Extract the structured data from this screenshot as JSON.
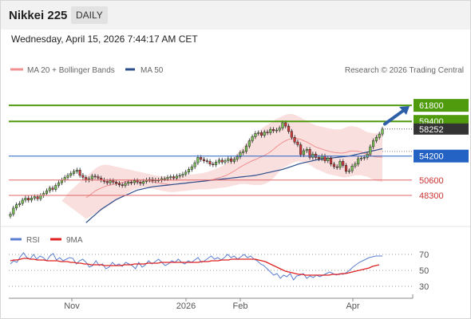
{
  "header": {
    "title": "Nikkei 225",
    "period": "DAILY"
  },
  "timestamp": "Wednesday, April 15, 2026 7:44:17 AM CET",
  "copyright": "Research © 2026 Trading Central",
  "legend": {
    "bollinger": "MA 20 + Bollinger Bands",
    "ma50": "MA 50",
    "rsi": "RSI",
    "ma9": "9MA"
  },
  "colors": {
    "resistance": "#4f9a0d",
    "pivot": "#2462c4",
    "support": "#e06666",
    "bollinger": "#f5b8b8",
    "ma50": "#2b4d8c",
    "rsi": "#5b7fd0",
    "ma9": "#e02020",
    "arrow": "#2c5fa8",
    "price_badge": "#333333"
  },
  "chart_data": [
    {
      "type": "candlestick",
      "name": "price",
      "ylim": [
        44000,
        66000
      ],
      "x_labels": [
        "Nov",
        "2026",
        "Feb",
        "Apr"
      ],
      "last_price": "58252",
      "levels": [
        {
          "value": 61800,
          "label": "61800",
          "kind": "resistance"
        },
        {
          "value": 59400,
          "label": "59400",
          "kind": "resistance"
        },
        {
          "value": 54200,
          "label": "54200",
          "kind": "pivot"
        },
        {
          "value": 50600,
          "label": "50600",
          "kind": "support"
        },
        {
          "value": 48300,
          "label": "48300",
          "kind": "support"
        }
      ],
      "close": [
        45500,
        46400,
        46900,
        47100,
        47600,
        47900,
        47600,
        47900,
        48100,
        47800,
        48300,
        48600,
        49000,
        49400,
        49200,
        49800,
        50200,
        50600,
        51000,
        51300,
        51600,
        51900,
        52100,
        51300,
        51000,
        50600,
        50800,
        51200,
        51100,
        50900,
        50600,
        50400,
        50200,
        50500,
        50300,
        50100,
        49900,
        49800,
        50100,
        50300,
        50200,
        50500,
        50300,
        50100,
        50400,
        50600,
        50700,
        50500,
        50600,
        50600,
        50800,
        50800,
        51000,
        51100,
        50900,
        51200,
        51300,
        51500,
        51800,
        52200,
        52600,
        53200,
        54000,
        53700,
        53500,
        53400,
        53000,
        52900,
        53300,
        53600,
        53300,
        53500,
        53800,
        53400,
        53700,
        54100,
        54700,
        54900,
        55700,
        56500,
        57100,
        57600,
        57700,
        57300,
        57800,
        57700,
        58200,
        58000,
        58100,
        58400,
        59200,
        58700,
        57900,
        57000,
        56300,
        55900,
        54400,
        55000,
        55200,
        54000,
        54500,
        54000,
        53800,
        54200,
        53500,
        53900,
        53000,
        52600,
        52500,
        53400,
        52800,
        51900,
        52000,
        52700,
        53000,
        53800,
        53900,
        54000,
        54500,
        55600,
        56500,
        57000,
        57500,
        58252
      ],
      "ma20_upper": [
        47500,
        48000,
        48600,
        49100,
        49500,
        49900,
        50300,
        50700,
        51100,
        51500,
        51900,
        52300,
        52600,
        52800,
        52900,
        52900,
        52800,
        52700,
        52600,
        52500,
        52400,
        52300,
        52200,
        52100,
        52000,
        51900,
        51800,
        51700,
        51600,
        51500,
        51400,
        51300,
        51250,
        51200,
        51150,
        51100,
        51100,
        51100,
        51150,
        51200,
        51250,
        51300,
        51400,
        51450,
        51500,
        51550,
        51600,
        51700,
        51800,
        51950,
        52100,
        52300,
        52500,
        52700,
        53000,
        53300,
        53700,
        54100,
        54600,
        55100,
        55600,
        56100,
        56600,
        57100,
        57500,
        57900,
        58300,
        58600,
        58900,
        59200,
        59500,
        59800,
        60000,
        60200,
        60400,
        60500,
        60500,
        60400,
        60200,
        60000,
        59700,
        59500,
        59200,
        59000,
        58800,
        58700,
        58600,
        58500,
        58400,
        58300,
        58200,
        58200,
        58200,
        58300,
        58500,
        58700,
        58700,
        58600,
        58500,
        58300,
        58000,
        57800,
        57700,
        57600,
        57600,
        57700,
        57700
      ],
      "ma20_lower": [
        44800,
        45000,
        45300,
        45600,
        45800,
        46000,
        46300,
        46600,
        46900,
        47200,
        47500,
        47800,
        48100,
        48400,
        48700,
        49000,
        49200,
        49300,
        49400,
        49450,
        49450,
        49400,
        49300,
        49200,
        49100,
        49000,
        48900,
        48850,
        48800,
        48800,
        48850,
        48900,
        48950,
        49000,
        49050,
        49100,
        49150,
        49200,
        49200,
        49200,
        49200,
        49250,
        49300,
        49350,
        49400,
        49450,
        49500,
        49600,
        49700,
        49800,
        49900,
        50000,
        50000,
        50000,
        49950,
        49900,
        49850,
        49850,
        49900,
        50000,
        50200,
        50500,
        50900,
        51400,
        51900,
        52300,
        52600,
        52900,
        53100,
        53300,
        53400,
        53400,
        53300,
        53100,
        52900,
        52600,
        52300,
        52100,
        51900,
        51700,
        51500,
        51400,
        51300,
        51200,
        51100,
        51000,
        51000,
        51100,
        51200,
        51300,
        51300,
        51300,
        51200,
        51100,
        50900,
        50700,
        50500,
        50400,
        50300
      ],
      "ma50": [
        44200,
        44600,
        45000,
        45400,
        45800,
        46200,
        46500,
        46800,
        47100,
        47400,
        47700,
        47900,
        48100,
        48300,
        48500,
        48700,
        48900,
        49100,
        49200,
        49300,
        49400,
        49500,
        49600,
        49650,
        49700,
        49750,
        49800,
        49850,
        49900,
        49950,
        50000,
        50050,
        50100,
        50150,
        50200,
        50250,
        50300,
        50350,
        50400,
        50450,
        50500,
        50550,
        50600,
        50650,
        50700,
        50750,
        50800,
        50850,
        50900,
        50950,
        51000,
        51050,
        51100,
        51150,
        51200,
        51250,
        51300,
        51400,
        51500,
        51600,
        51700,
        51800,
        51900,
        52000,
        52100,
        52200,
        52350,
        52500,
        52650,
        52800,
        52950,
        53100,
        53200,
        53300,
        53400,
        53500,
        53600,
        53700,
        53750,
        53800,
        53850,
        53900,
        53950,
        54000,
        54050,
        54100,
        54150,
        54200,
        54300,
        54400,
        54500,
        54600,
        54700,
        54800,
        54900,
        55000,
        55100,
        55200,
        55300
      ]
    },
    {
      "type": "line",
      "name": "rsi",
      "ylim": [
        20,
        80
      ],
      "y_ticks": [
        70,
        50,
        30
      ],
      "series": [
        {
          "name": "RSI",
          "values": [
            58,
            62,
            60,
            67,
            72,
            66,
            64,
            70,
            64,
            68,
            66,
            62,
            68,
            71,
            63,
            66,
            62,
            64,
            66,
            65,
            58,
            62,
            64,
            60,
            54,
            56,
            62,
            56,
            58,
            52,
            54,
            60,
            56,
            58,
            55,
            60,
            58,
            56,
            52,
            60,
            54,
            57,
            62,
            58,
            61,
            64,
            60,
            56,
            58,
            62,
            60,
            64,
            60,
            58,
            62,
            60,
            63,
            66,
            60,
            62,
            65,
            68,
            64,
            66,
            63,
            66,
            70,
            66,
            68,
            64,
            67,
            70,
            66,
            68,
            64,
            62,
            58,
            56,
            52,
            48,
            44,
            46,
            40,
            44,
            42,
            46,
            38,
            43,
            44,
            46,
            40,
            43,
            41,
            44,
            42,
            44,
            46,
            48,
            46,
            44,
            46,
            45,
            47,
            50,
            54,
            57,
            60,
            62,
            64,
            66,
            67,
            68,
            68,
            68
          ]
        },
        {
          "name": "9MA",
          "values": [
            62,
            63,
            63,
            64,
            65,
            65,
            64,
            64,
            63,
            63,
            63,
            62,
            62,
            62,
            62,
            61,
            61,
            61,
            60,
            60,
            59,
            59,
            58,
            58,
            57,
            57,
            57,
            57,
            56,
            56,
            56,
            56,
            56,
            56,
            57,
            57,
            57,
            58,
            58,
            58,
            58,
            59,
            59,
            59,
            59,
            60,
            60,
            60,
            60,
            60,
            60,
            60,
            60,
            60,
            60,
            60,
            60,
            61,
            61,
            61,
            62,
            62,
            62,
            63,
            63,
            63,
            64,
            64,
            64,
            64,
            64,
            64,
            64,
            64,
            63,
            62,
            61,
            59,
            57,
            55,
            53,
            51,
            49,
            48,
            47,
            46,
            45,
            45,
            44,
            44,
            44,
            44,
            44,
            44,
            44,
            44,
            45,
            45,
            45,
            46,
            46,
            47,
            48,
            49,
            50,
            51,
            52,
            53,
            55,
            56,
            57
          ]
        }
      ]
    }
  ]
}
